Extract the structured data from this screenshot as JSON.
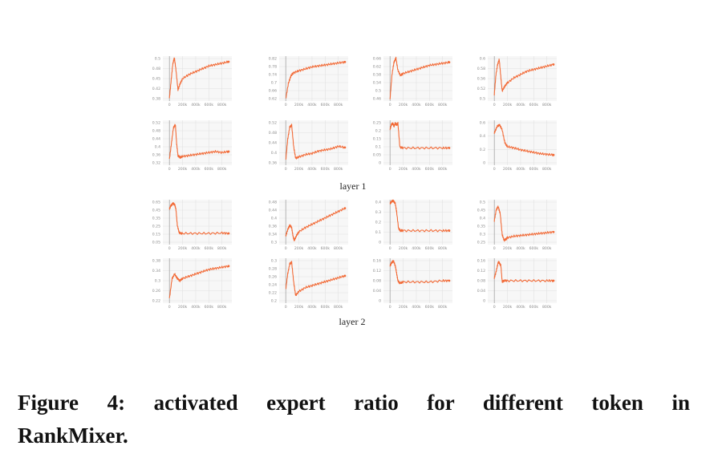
{
  "chart_data": [
    {
      "group": "layer 1",
      "panels": [
        {
          "type": "line",
          "x_ticks": [
            "0",
            "200k",
            "400k",
            "600k",
            "800k"
          ],
          "y_ticks": [
            "0.5",
            "0.48",
            "0.45",
            "0.42",
            "0.38"
          ],
          "ylim": [
            0.36,
            0.52
          ],
          "xlim": [
            -100000,
            950000
          ],
          "x": [
            0,
            25000,
            50000,
            75000,
            100000,
            130000,
            160000,
            200000,
            300000,
            400000,
            500000,
            600000,
            700000,
            800000,
            900000
          ],
          "y": [
            0.37,
            0.43,
            0.49,
            0.515,
            0.47,
            0.4,
            0.42,
            0.44,
            0.455,
            0.465,
            0.475,
            0.485,
            0.49,
            0.495,
            0.5
          ]
        },
        {
          "type": "line",
          "x_ticks": [
            "0",
            "200k",
            "400k",
            "600k",
            "800k"
          ],
          "y_ticks": [
            "0.82",
            "0.78",
            "0.74",
            "0.7",
            "0.66",
            "0.62"
          ],
          "ylim": [
            0.61,
            0.84
          ],
          "xlim": [
            -100000,
            950000
          ],
          "x": [
            0,
            40000,
            80000,
            120000,
            200000,
            300000,
            400000,
            500000,
            600000,
            700000,
            800000,
            900000
          ],
          "y": [
            0.62,
            0.7,
            0.74,
            0.755,
            0.765,
            0.775,
            0.785,
            0.79,
            0.795,
            0.8,
            0.805,
            0.81
          ]
        },
        {
          "type": "line",
          "x_ticks": [
            "0",
            "200k",
            "400k",
            "600k",
            "800k"
          ],
          "y_ticks": [
            "0.66",
            "0.62",
            "0.58",
            "0.54",
            "0.5",
            "0.46"
          ],
          "ylim": [
            0.45,
            0.67
          ],
          "xlim": [
            -100000,
            950000
          ],
          "x": [
            0,
            30000,
            60000,
            90000,
            120000,
            160000,
            200000,
            300000,
            400000,
            500000,
            600000,
            700000,
            800000,
            900000
          ],
          "y": [
            0.46,
            0.58,
            0.64,
            0.66,
            0.6,
            0.575,
            0.585,
            0.595,
            0.605,
            0.615,
            0.625,
            0.63,
            0.635,
            0.64
          ]
        },
        {
          "type": "line",
          "x_ticks": [
            "0",
            "200k",
            "400k",
            "600k",
            "800k"
          ],
          "y_ticks": [
            "0.6",
            "0.58",
            "0.56",
            "0.52",
            "0.5"
          ],
          "ylim": [
            0.48,
            0.615
          ],
          "xlim": [
            -100000,
            950000
          ],
          "x": [
            0,
            25000,
            50000,
            75000,
            100000,
            120000,
            160000,
            200000,
            300000,
            400000,
            500000,
            600000,
            700000,
            800000,
            900000
          ],
          "y": [
            0.5,
            0.56,
            0.59,
            0.605,
            0.55,
            0.51,
            0.525,
            0.535,
            0.55,
            0.56,
            0.57,
            0.575,
            0.58,
            0.585,
            0.59
          ]
        },
        {
          "type": "line",
          "x_ticks": [
            "0",
            "200k",
            "400k",
            "600k",
            "800k"
          ],
          "y_ticks": [
            "0.52",
            "0.48",
            "0.44",
            "0.4",
            "0.36",
            "0.32"
          ],
          "ylim": [
            0.31,
            0.54
          ],
          "xlim": [
            -100000,
            950000
          ],
          "x": [
            0,
            30000,
            60000,
            90000,
            110000,
            130000,
            160000,
            200000,
            300000,
            400000,
            500000,
            600000,
            700000,
            800000,
            900000
          ],
          "y": [
            0.34,
            0.42,
            0.5,
            0.52,
            0.42,
            0.36,
            0.35,
            0.355,
            0.36,
            0.365,
            0.37,
            0.375,
            0.38,
            0.375,
            0.38
          ]
        },
        {
          "type": "line",
          "x_ticks": [
            "0",
            "200k",
            "400k",
            "600k",
            "800k"
          ],
          "y_ticks": [
            "0.52",
            "0.48",
            "0.44",
            "0.4",
            "0.36"
          ],
          "ylim": [
            0.35,
            0.54
          ],
          "xlim": [
            -100000,
            950000
          ],
          "x": [
            0,
            30000,
            60000,
            90000,
            120000,
            150000,
            200000,
            300000,
            400000,
            500000,
            600000,
            700000,
            800000,
            900000
          ],
          "y": [
            0.37,
            0.46,
            0.51,
            0.52,
            0.43,
            0.38,
            0.385,
            0.395,
            0.4,
            0.41,
            0.415,
            0.42,
            0.43,
            0.425
          ]
        },
        {
          "type": "line",
          "x_ticks": [
            "0",
            "200k",
            "400k",
            "600k",
            "800k"
          ],
          "y_ticks": [
            "0.25",
            "0.2",
            "0.15",
            "0.1",
            "0.05",
            "0"
          ],
          "ylim": [
            -0.03,
            0.27
          ],
          "xlim": [
            -100000,
            950000
          ],
          "x": [
            0,
            20000,
            40000,
            60000,
            80000,
            100000,
            120000,
            150000,
            200000,
            400000,
            600000,
            800000,
            900000
          ],
          "y": [
            0.21,
            0.24,
            0.25,
            0.23,
            0.25,
            0.24,
            0.25,
            0.09,
            0.085,
            0.085,
            0.085,
            0.085,
            0.085
          ]
        },
        {
          "type": "line",
          "x_ticks": [
            "0",
            "200k",
            "400k",
            "600k",
            "800k"
          ],
          "y_ticks": [
            "0.6",
            "0.4",
            "0.2",
            "0"
          ],
          "ylim": [
            -0.05,
            0.65
          ],
          "xlim": [
            -100000,
            950000
          ],
          "x": [
            0,
            40000,
            80000,
            120000,
            160000,
            200000,
            300000,
            400000,
            500000,
            600000,
            700000,
            800000,
            900000
          ],
          "y": [
            0.45,
            0.55,
            0.58,
            0.5,
            0.3,
            0.24,
            0.22,
            0.19,
            0.17,
            0.15,
            0.13,
            0.12,
            0.11
          ]
        }
      ]
    },
    {
      "group": "layer 2",
      "panels": [
        {
          "type": "line",
          "x_ticks": [
            "0",
            "200k",
            "400k",
            "600k",
            "800k"
          ],
          "y_ticks": [
            "0.65",
            "0.45",
            "0.35",
            "0.25",
            "0.15",
            "0.05"
          ],
          "ylim": [
            0.0,
            0.58
          ],
          "xlim": [
            -100000,
            950000
          ],
          "x": [
            0,
            20000,
            50000,
            80000,
            100000,
            120000,
            150000,
            200000,
            400000,
            600000,
            800000,
            900000
          ],
          "y": [
            0.46,
            0.5,
            0.53,
            0.52,
            0.45,
            0.25,
            0.15,
            0.145,
            0.145,
            0.145,
            0.15,
            0.145
          ]
        },
        {
          "type": "line",
          "x_ticks": [
            "0",
            "200k",
            "400k",
            "600k",
            "800k"
          ],
          "y_ticks": [
            "0.48",
            "0.44",
            "0.4",
            "0.36",
            "0.34",
            "0.3"
          ],
          "ylim": [
            0.29,
            0.5
          ],
          "xlim": [
            -100000,
            950000
          ],
          "x": [
            0,
            30000,
            60000,
            90000,
            110000,
            130000,
            160000,
            200000,
            300000,
            400000,
            500000,
            600000,
            700000,
            800000,
            900000
          ],
          "y": [
            0.33,
            0.36,
            0.38,
            0.37,
            0.33,
            0.31,
            0.33,
            0.35,
            0.37,
            0.385,
            0.4,
            0.415,
            0.43,
            0.445,
            0.46
          ]
        },
        {
          "type": "line",
          "x_ticks": [
            "0",
            "200k",
            "400k",
            "600k",
            "800k"
          ],
          "y_ticks": [
            "0.4",
            "0.3",
            "0.2",
            "0.1",
            "0"
          ],
          "ylim": [
            -0.03,
            0.42
          ],
          "xlim": [
            -100000,
            950000
          ],
          "x": [
            0,
            20000,
            50000,
            80000,
            100000,
            130000,
            160000,
            200000,
            400000,
            600000,
            800000,
            900000
          ],
          "y": [
            0.38,
            0.4,
            0.41,
            0.38,
            0.3,
            0.13,
            0.11,
            0.11,
            0.11,
            0.11,
            0.11,
            0.11
          ]
        },
        {
          "type": "line",
          "x_ticks": [
            "0",
            "200k",
            "400k",
            "600k",
            "800k"
          ],
          "y_ticks": [
            "0.5",
            "0.45",
            "0.4",
            "0.35",
            "0.3",
            "0.25"
          ],
          "ylim": [
            0.23,
            0.55
          ],
          "xlim": [
            -100000,
            950000
          ],
          "x": [
            0,
            30000,
            60000,
            90000,
            120000,
            150000,
            180000,
            200000,
            300000,
            400000,
            500000,
            600000,
            700000,
            800000,
            900000
          ],
          "y": [
            0.4,
            0.48,
            0.5,
            0.45,
            0.3,
            0.26,
            0.27,
            0.28,
            0.29,
            0.295,
            0.3,
            0.305,
            0.31,
            0.315,
            0.32
          ]
        },
        {
          "type": "line",
          "x_ticks": [
            "0",
            "200k",
            "400k",
            "600k",
            "800k"
          ],
          "y_ticks": [
            "0.38",
            "0.34",
            "0.3",
            "0.26",
            "0.22"
          ],
          "ylim": [
            0.2,
            0.4
          ],
          "xlim": [
            -100000,
            950000
          ],
          "x": [
            0,
            40000,
            80000,
            120000,
            160000,
            200000,
            300000,
            400000,
            500000,
            600000,
            700000,
            800000,
            900000
          ],
          "y": [
            0.22,
            0.31,
            0.33,
            0.31,
            0.3,
            0.31,
            0.32,
            0.33,
            0.34,
            0.35,
            0.355,
            0.36,
            0.365
          ]
        },
        {
          "type": "line",
          "x_ticks": [
            "0",
            "200k",
            "400k",
            "600k",
            "800k"
          ],
          "y_ticks": [
            "0.3",
            "0.28",
            "0.26",
            "0.24",
            "0.22",
            "0.2"
          ],
          "ylim": [
            0.195,
            0.31
          ],
          "xlim": [
            -100000,
            950000
          ],
          "x": [
            0,
            30000,
            60000,
            90000,
            120000,
            150000,
            200000,
            300000,
            400000,
            500000,
            600000,
            700000,
            800000,
            900000
          ],
          "y": [
            0.23,
            0.27,
            0.295,
            0.3,
            0.25,
            0.215,
            0.225,
            0.235,
            0.24,
            0.245,
            0.25,
            0.255,
            0.26,
            0.265
          ]
        },
        {
          "type": "line",
          "x_ticks": [
            "0",
            "200k",
            "400k",
            "600k",
            "800k"
          ],
          "y_ticks": [
            "0.16",
            "0.12",
            "0.08",
            "0.04",
            "0"
          ],
          "ylim": [
            -0.01,
            0.17
          ],
          "xlim": [
            -100000,
            950000
          ],
          "x": [
            0,
            20000,
            50000,
            80000,
            100000,
            120000,
            150000,
            200000,
            400000,
            600000,
            800000,
            900000
          ],
          "y": [
            0.14,
            0.15,
            0.16,
            0.14,
            0.11,
            0.08,
            0.07,
            0.075,
            0.075,
            0.075,
            0.08,
            0.08
          ]
        },
        {
          "type": "line",
          "x_ticks": [
            "0",
            "200k",
            "400k",
            "600k",
            "800k"
          ],
          "y_ticks": [
            "0.16",
            "0.12",
            "0.08",
            "0.04",
            "0"
          ],
          "ylim": [
            -0.01,
            0.17
          ],
          "xlim": [
            -100000,
            950000
          ],
          "x": [
            0,
            30000,
            60000,
            80000,
            100000,
            120000,
            140000,
            200000,
            400000,
            600000,
            800000,
            900000
          ],
          "y": [
            0.09,
            0.12,
            0.155,
            0.15,
            0.14,
            0.075,
            0.08,
            0.08,
            0.08,
            0.08,
            0.08,
            0.08
          ]
        }
      ]
    }
  ],
  "caption": {
    "line1": "Figure 4: activated expert ratio for different token in",
    "line2": "RankMixer."
  },
  "colors": {
    "series": "#f26b38",
    "panel_bg": "#f7f7f7",
    "grid": "#e2e2e2"
  }
}
